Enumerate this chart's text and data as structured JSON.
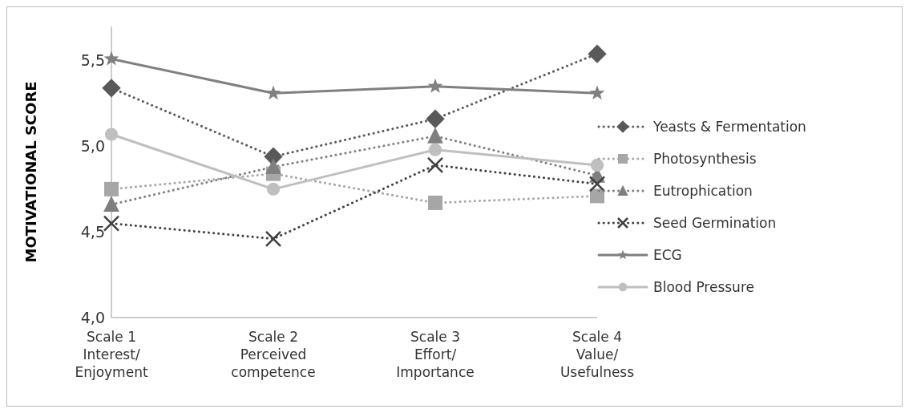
{
  "chart_data": {
    "type": "line",
    "ylabel": "MOTIVATIONAL SCORE",
    "categories": [
      "Scale 1\nInterest/\nEnjoyment",
      "Scale 2\nPerceived\ncompetence",
      "Scale 3\nEffort/\nImportance",
      "Scale 4\nValue/\nUsefulness"
    ],
    "series": [
      {
        "name": "Yeasts & Fermentation",
        "color": "#595959",
        "marker": "diamond",
        "line_style": "dotted",
        "values": [
          5.34,
          4.94,
          5.16,
          5.54
        ]
      },
      {
        "name": "Photosynthesis",
        "color": "#a6a6a6",
        "marker": "square",
        "line_style": "dotted",
        "values": [
          4.75,
          4.84,
          4.67,
          4.71
        ]
      },
      {
        "name": "Eutrophication",
        "color": "#7f7f7f",
        "marker": "triangle",
        "line_style": "dotted",
        "values": [
          4.66,
          4.88,
          5.06,
          4.83
        ]
      },
      {
        "name": "Seed Germination",
        "color": "#404040",
        "marker": "cross",
        "line_style": "dotted",
        "values": [
          4.55,
          4.46,
          4.89,
          4.78
        ]
      },
      {
        "name": "ECG",
        "color": "#808080",
        "marker": "star",
        "line_style": "solid",
        "values": [
          5.51,
          5.31,
          5.35,
          5.31
        ]
      },
      {
        "name": "Blood Pressure",
        "color": "#bfbfbf",
        "marker": "circle",
        "line_style": "solid",
        "values": [
          5.07,
          4.75,
          4.98,
          4.89
        ]
      }
    ],
    "ylim": [
      4.0,
      5.7
    ],
    "yticks": [
      {
        "value": 4.0,
        "label": "4,0"
      },
      {
        "value": 4.5,
        "label": "4,5"
      },
      {
        "value": 5.0,
        "label": "5,0"
      },
      {
        "value": 5.5,
        "label": "5,5"
      }
    ],
    "grid": false,
    "legend": "right"
  }
}
